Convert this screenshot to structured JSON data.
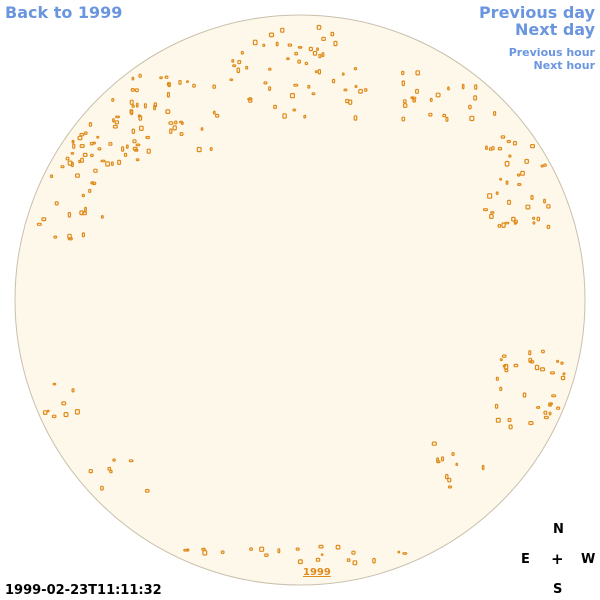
{
  "nav": {
    "back": "Back to 1999",
    "previous_day": "Previous day",
    "next_day": "Next day",
    "previous_hour": "Previous hour",
    "next_hour": "Next hour"
  },
  "timestamp": "1999-02-23T11:11:32",
  "compass": {
    "n": "N",
    "e": "E",
    "center": "+",
    "w": "W",
    "s": "S"
  },
  "year_link": "1999",
  "colors": {
    "disk_fill": "#fdf8ea",
    "disk_stroke": "#c8c0ac",
    "features": "#e08a1a",
    "nav_link": "#6a96e0"
  }
}
